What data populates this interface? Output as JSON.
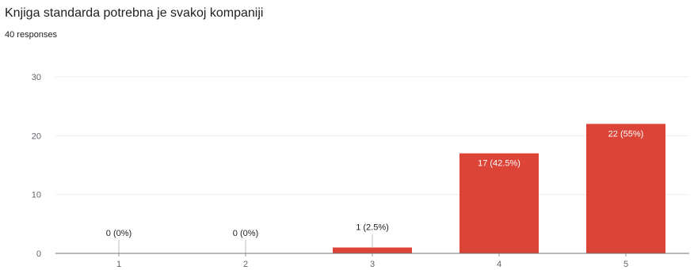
{
  "title": "Knjiga standarda potrebna je svakoj kompaniji",
  "subtitle": "40 responses",
  "colors": {
    "bar": "#db4437",
    "grid": "#eeeeee",
    "axis": "#9e9e9e",
    "label_inside": "#ffffff",
    "label_outside": "#202124"
  },
  "chart_data": {
    "type": "bar",
    "title": "Knjiga standarda potrebna je svakoj kompaniji",
    "categories": [
      "1",
      "2",
      "3",
      "4",
      "5"
    ],
    "values": [
      0,
      0,
      1,
      17,
      22
    ],
    "data_labels": [
      "0 (0%)",
      "0 (0%)",
      "1 (2.5%)",
      "17 (42.5%)",
      "22 (55%)"
    ],
    "ylim": [
      0,
      30
    ],
    "yticks": [
      0,
      10,
      20,
      30
    ],
    "grid": true,
    "xlabel": "",
    "ylabel": ""
  }
}
